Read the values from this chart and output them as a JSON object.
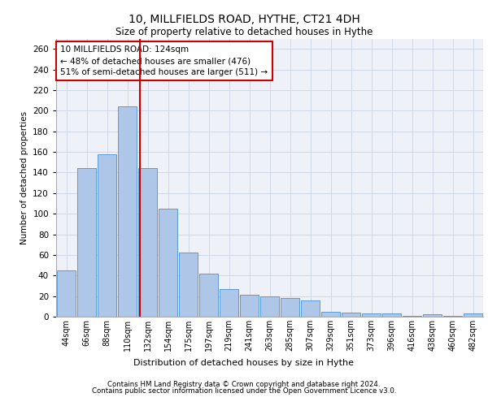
{
  "title1": "10, MILLFIELDS ROAD, HYTHE, CT21 4DH",
  "title2": "Size of property relative to detached houses in Hythe",
  "xlabel": "Distribution of detached houses by size in Hythe",
  "ylabel": "Number of detached properties",
  "footer1": "Contains HM Land Registry data © Crown copyright and database right 2024.",
  "footer2": "Contains public sector information licensed under the Open Government Licence v3.0.",
  "categories": [
    "44sqm",
    "66sqm",
    "88sqm",
    "110sqm",
    "132sqm",
    "154sqm",
    "175sqm",
    "197sqm",
    "219sqm",
    "241sqm",
    "263sqm",
    "285sqm",
    "307sqm",
    "329sqm",
    "351sqm",
    "373sqm",
    "396sqm",
    "416sqm",
    "438sqm",
    "460sqm",
    "482sqm"
  ],
  "values": [
    45,
    144,
    158,
    204,
    144,
    105,
    62,
    42,
    27,
    21,
    20,
    18,
    16,
    5,
    4,
    3,
    3,
    1,
    2,
    1,
    3
  ],
  "bar_color": "#aec6e8",
  "bar_edge_color": "#5b9bd5",
  "grid_color": "#d0d8e8",
  "background_color": "#eef2f8",
  "vline_color": "#cc0000",
  "annotation_text": "10 MILLFIELDS ROAD: 124sqm\n← 48% of detached houses are smaller (476)\n51% of semi-detached houses are larger (511) →",
  "annotation_box_color": "#ffffff",
  "annotation_border_color": "#cc0000",
  "ylim": [
    0,
    270
  ],
  "yticks": [
    0,
    20,
    40,
    60,
    80,
    100,
    120,
    140,
    160,
    180,
    200,
    220,
    240,
    260
  ],
  "vline_pos": 3.636
}
